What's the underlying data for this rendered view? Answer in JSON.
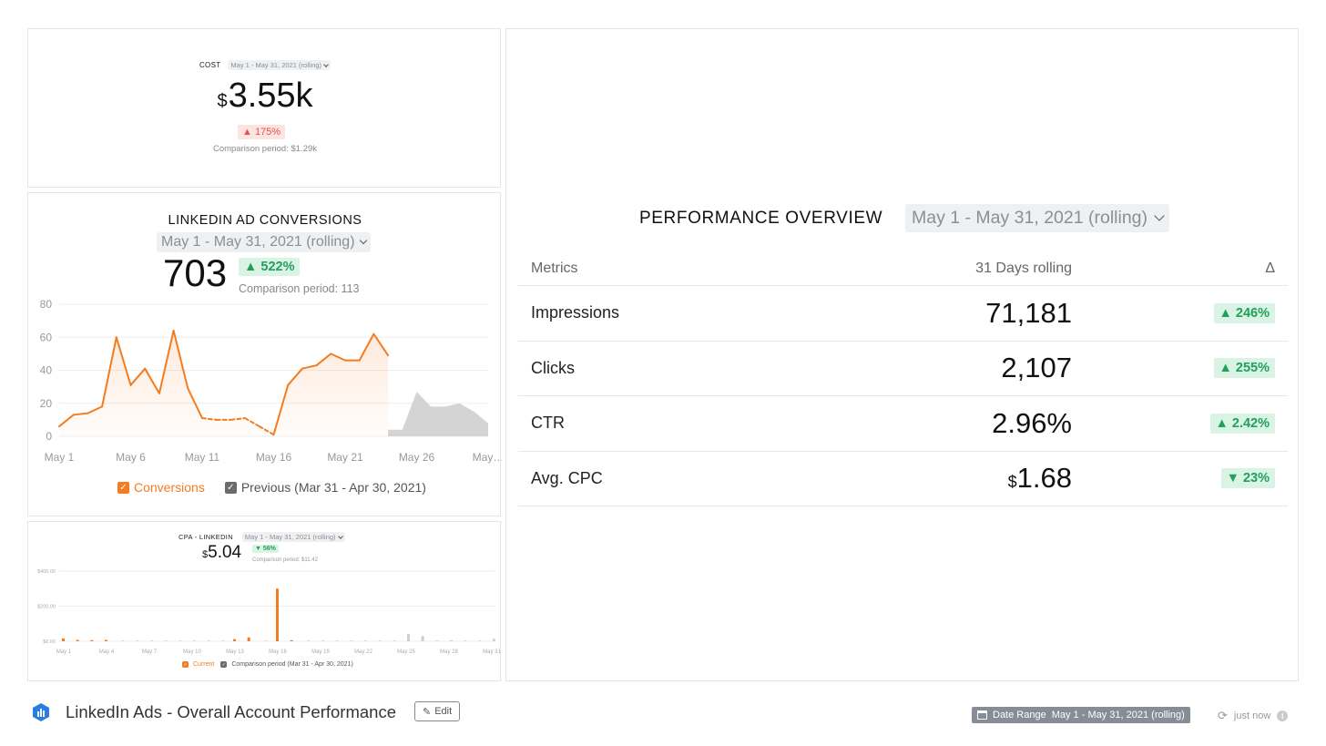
{
  "cost": {
    "title": "COST",
    "date_range": "May 1 - May 31, 2021 (rolling)",
    "currency": "$",
    "value": "3.55k",
    "delta": "▲ 175%",
    "comparison": "Comparison period: $1.29k"
  },
  "conversions": {
    "title": "LINKEDIN AD CONVERSIONS",
    "date_range": "May 1 - May 31, 2021 (rolling)",
    "value": "703",
    "delta": "▲ 522%",
    "comparison": "Comparison period: 113",
    "legend": {
      "current": "Conversions",
      "previous": "Previous (Mar 31 - Apr 30, 2021)"
    },
    "colors": {
      "current": "#f47c20",
      "previous": "#6b6b6b",
      "previous_fill": "#d4d4d4"
    }
  },
  "cpa": {
    "title": "CPA - LINKEDIN",
    "date_range": "May 1 - May 31, 2021 (rolling)",
    "currency": "$",
    "value": "5.04",
    "delta": "▼ 56%",
    "comparison": "Comparison period: $11.42",
    "legend": {
      "current": "Current",
      "previous": "Comparison period (Mar 31 - Apr 30, 2021)"
    }
  },
  "performance": {
    "title": "PERFORMANCE OVERVIEW",
    "date_range": "May 1 - May 31, 2021 (rolling)",
    "headers": {
      "metric": "Metrics",
      "value": "31 Days rolling",
      "delta": "Δ"
    },
    "rows": [
      {
        "metric": "Impressions",
        "currency": "",
        "value": "71,181",
        "delta": "▲ 246%"
      },
      {
        "metric": "Clicks",
        "currency": "",
        "value": "2,107",
        "delta": "▲ 255%"
      },
      {
        "metric": "CTR",
        "currency": "",
        "value": "2.96%",
        "delta": "▲ 2.42%"
      },
      {
        "metric": "Avg. CPC",
        "currency": "$",
        "value": "1.68",
        "delta": "▼ 23%"
      }
    ]
  },
  "footer": {
    "dashboard_title": "LinkedIn Ads - Overall Account Performance",
    "edit_label": "Edit",
    "date_range_label": "Date Range",
    "date_range_value": "May 1 - May 31, 2021 (rolling)",
    "refresh_text": "just now",
    "icons": {
      "logo": "databox-logo-icon",
      "refresh": "refresh-icon",
      "info": "info-icon",
      "calendar": "calendar-icon",
      "edit": "edit-icon"
    }
  },
  "chart_data": [
    {
      "type": "line",
      "title": "LINKEDIN AD CONVERSIONS",
      "x": [
        1,
        2,
        3,
        4,
        5,
        6,
        7,
        8,
        9,
        10,
        11,
        12,
        13,
        14,
        15,
        16,
        17,
        18,
        19,
        20,
        21,
        22,
        23,
        24,
        25,
        26,
        27,
        28,
        29,
        30,
        31
      ],
      "x_ticks": [
        1,
        6,
        11,
        16,
        21,
        26,
        31
      ],
      "tick_labels": [
        "May 1",
        "May 6",
        "May 11",
        "May 16",
        "May 21",
        "May 26",
        "May…"
      ],
      "ylim": [
        0,
        80
      ],
      "y_ticks": [
        0,
        20,
        40,
        60,
        80
      ],
      "grid": true,
      "legend_position": "bottom",
      "series": [
        {
          "name": "Conversions",
          "x": [
            1,
            2,
            3,
            4,
            5,
            6,
            7,
            8,
            9,
            10,
            11,
            12,
            13,
            14,
            15,
            16,
            17,
            18,
            19,
            20,
            21,
            22,
            23,
            24
          ],
          "values": [
            6,
            13,
            14,
            18,
            60,
            31,
            41,
            26,
            64,
            29,
            11,
            10,
            10,
            11,
            6,
            1,
            31,
            41,
            43,
            50,
            46,
            46,
            62,
            49
          ],
          "estimated_from": 11,
          "estimated_to": 16
        },
        {
          "name": "Previous (Mar 31 - Apr 30, 2021)",
          "x": [
            24,
            25,
            26,
            27,
            28,
            29,
            30,
            31
          ],
          "values": [
            4,
            4,
            27,
            18,
            18,
            20,
            15,
            8
          ]
        }
      ]
    },
    {
      "type": "bar",
      "title": "CPA - LINKEDIN",
      "x": [
        1,
        2,
        3,
        4,
        5,
        6,
        7,
        8,
        9,
        10,
        11,
        12,
        13,
        14,
        15,
        16,
        17,
        18,
        19,
        20,
        21,
        22,
        23,
        24,
        25,
        26,
        27,
        28,
        29,
        30,
        31
      ],
      "x_ticks": [
        1,
        4,
        7,
        10,
        13,
        16,
        19,
        22,
        25,
        28,
        31
      ],
      "tick_labels": [
        "May 1",
        "May 4",
        "May 7",
        "May 10",
        "May 13",
        "May 16",
        "May 19",
        "May 22",
        "May 25",
        "May 28",
        "May 31"
      ],
      "ylim": [
        0,
        400
      ],
      "y_ticks": [
        0,
        200,
        400
      ],
      "y_tick_labels": [
        "$0.00",
        "$200.00",
        "$400.00"
      ],
      "grid": true,
      "legend_position": "bottom",
      "series": [
        {
          "name": "Current",
          "values": [
            16,
            8,
            6,
            8,
            0,
            0,
            0,
            0,
            0,
            0,
            0,
            0,
            12,
            22,
            0,
            300,
            6,
            0,
            0,
            0,
            0,
            0,
            0,
            0,
            0,
            0,
            0,
            0,
            0,
            0,
            0
          ]
        },
        {
          "name": "Comparison period (Mar 31 - Apr 30, 2021)",
          "values": [
            0,
            0,
            0,
            0,
            4,
            4,
            4,
            4,
            4,
            4,
            4,
            4,
            0,
            0,
            4,
            0,
            0,
            4,
            4,
            4,
            4,
            4,
            4,
            4,
            42,
            30,
            4,
            6,
            4,
            4,
            14
          ]
        }
      ]
    }
  ]
}
